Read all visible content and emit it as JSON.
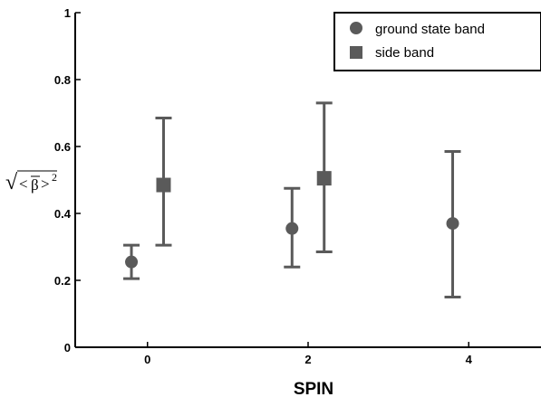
{
  "chart_data": {
    "type": "scatter",
    "title": "",
    "xlabel": "SPIN",
    "ylabel": {
      "operator": "√",
      "open": "<",
      "symbol": "β",
      "close": ">",
      "power": "2"
    },
    "xlim": [
      -0.9,
      4.9
    ],
    "ylim": [
      0,
      1
    ],
    "xticks": [
      "0",
      "2",
      "4"
    ],
    "xtick_values": [
      0,
      2,
      4
    ],
    "yticks": [
      "0",
      "0.2",
      "0.4",
      "0.6",
      "0.8",
      "1"
    ],
    "ytick_values": [
      0,
      0.2,
      0.4,
      0.6,
      0.8,
      1
    ],
    "grid": false,
    "legend_position": "top-right",
    "marker_color": "#5a5a5a",
    "series": [
      {
        "name": "ground state band",
        "marker": "circle",
        "points": [
          {
            "x": -0.2,
            "y": 0.255,
            "lo": 0.205,
            "hi": 0.305
          },
          {
            "x": 1.8,
            "y": 0.355,
            "lo": 0.24,
            "hi": 0.475
          },
          {
            "x": 3.8,
            "y": 0.37,
            "lo": 0.15,
            "hi": 0.585
          }
        ]
      },
      {
        "name": "side band",
        "marker": "square",
        "points": [
          {
            "x": 0.2,
            "y": 0.485,
            "lo": 0.305,
            "hi": 0.685
          },
          {
            "x": 2.2,
            "y": 0.505,
            "lo": 0.285,
            "hi": 0.73
          }
        ]
      }
    ]
  }
}
